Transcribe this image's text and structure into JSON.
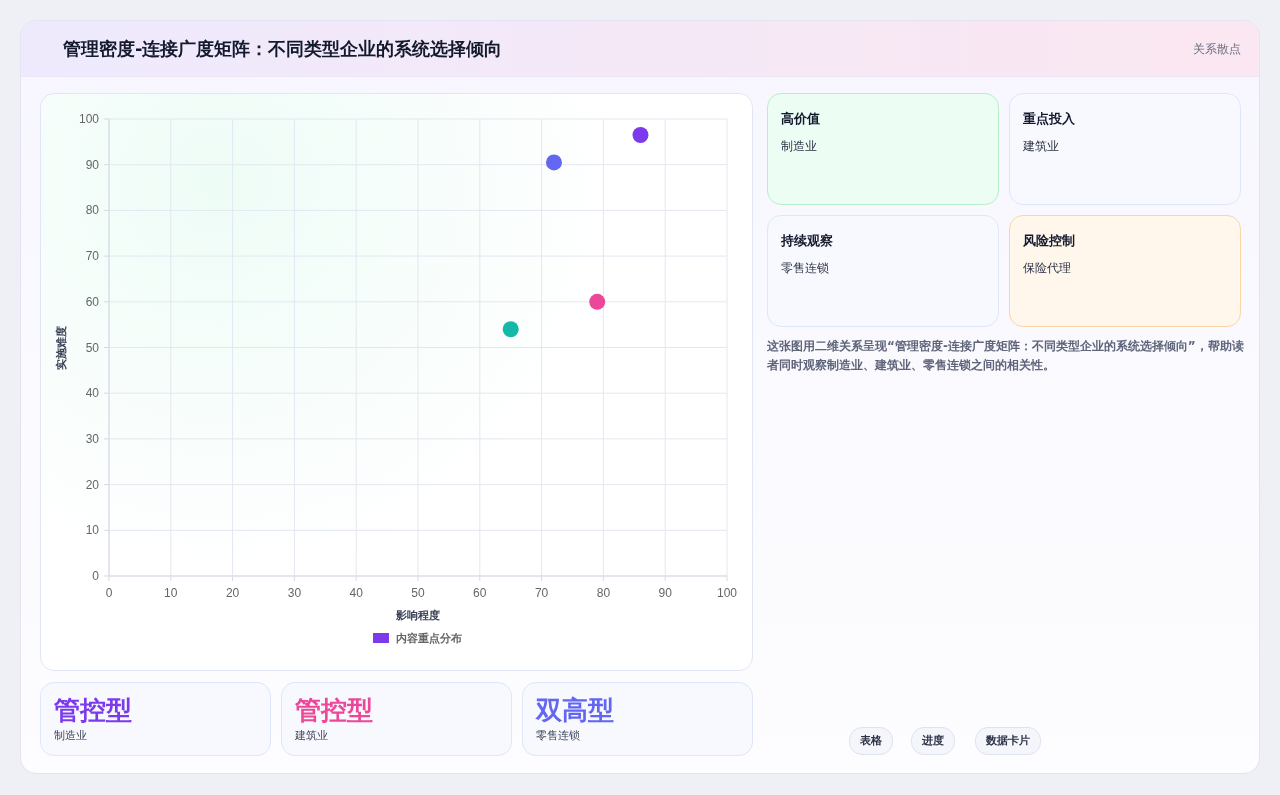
{
  "chart_data": [
    {
      "type": "scatter",
      "title": "管理密度-连接广度矩阵：不同类型企业的系统选择倾向",
      "xlabel": "影响程度",
      "ylabel": "实施难度",
      "xlim": [
        0,
        100
      ],
      "xticks": [
        0,
        10,
        20,
        30,
        40,
        50,
        60,
        70,
        80,
        90,
        100
      ],
      "ylim": [
        0,
        100
      ],
      "yticks": [
        0,
        10,
        20,
        30,
        40,
        50,
        60,
        70,
        80,
        90,
        100
      ],
      "grid": true,
      "legend": "bottom",
      "marker": "circle",
      "series": [
        {
          "name": "内容重点分布",
          "color": "#7c3aed",
          "x": [
            86,
            79,
            72,
            65
          ],
          "values": [
            96.5,
            60,
            90.5,
            54
          ],
          "colors": [
            "#7c3aed",
            "#ec4899",
            "#6366f1",
            "#14b8a6"
          ]
        }
      ]
    },
    {
      "type": "other",
      "annotations": [
        "关系散点",
        "高价值",
        "制造业",
        "重点投入",
        "建筑业",
        "持续观察",
        "零售连锁",
        "风险控制",
        "保险代理",
        "这张图用二维关系呈现“管理密度-连接广度矩阵：不同类型企业的系统选择倾向”，帮助读者同时观察制造业、建筑业、零售连锁之间的相关性。",
        "管控型",
        "制造业",
        "管控型",
        "建筑业",
        "双高型",
        "零售连锁",
        "表格",
        "进度",
        "数据卡片"
      ]
    }
  ]
}
